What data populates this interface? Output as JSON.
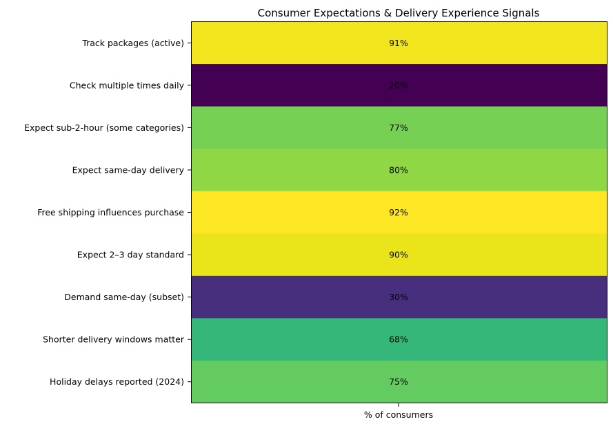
{
  "chart_data": {
    "type": "heatmap",
    "title": "Consumer Expectations & Delivery Experience Signals",
    "xlabel": "",
    "ylabel": "",
    "x_categories": [
      "% of consumers"
    ],
    "categories": [
      "Track packages (active)",
      "Check multiple times daily",
      "Expect sub-2-hour (some categories)",
      "Expect same-day delivery",
      "Free shipping influences purchase",
      "Expect 2–3 day standard",
      "Demand same-day (subset)",
      "Shorter delivery windows matter",
      "Holiday delays reported (2024)"
    ],
    "values": [
      91,
      20,
      77,
      80,
      92,
      90,
      30,
      68,
      75
    ],
    "value_labels": [
      "91%",
      "20%",
      "77%",
      "80%",
      "92%",
      "90%",
      "30%",
      "68%",
      "75%"
    ],
    "colormap": "viridis",
    "colors": [
      "#f1e51d",
      "#440154",
      "#75d054",
      "#8fd744",
      "#fde725",
      "#eae51a",
      "#472f7d",
      "#35b779",
      "#63cb5f"
    ],
    "grid": false,
    "colorbar": false
  }
}
